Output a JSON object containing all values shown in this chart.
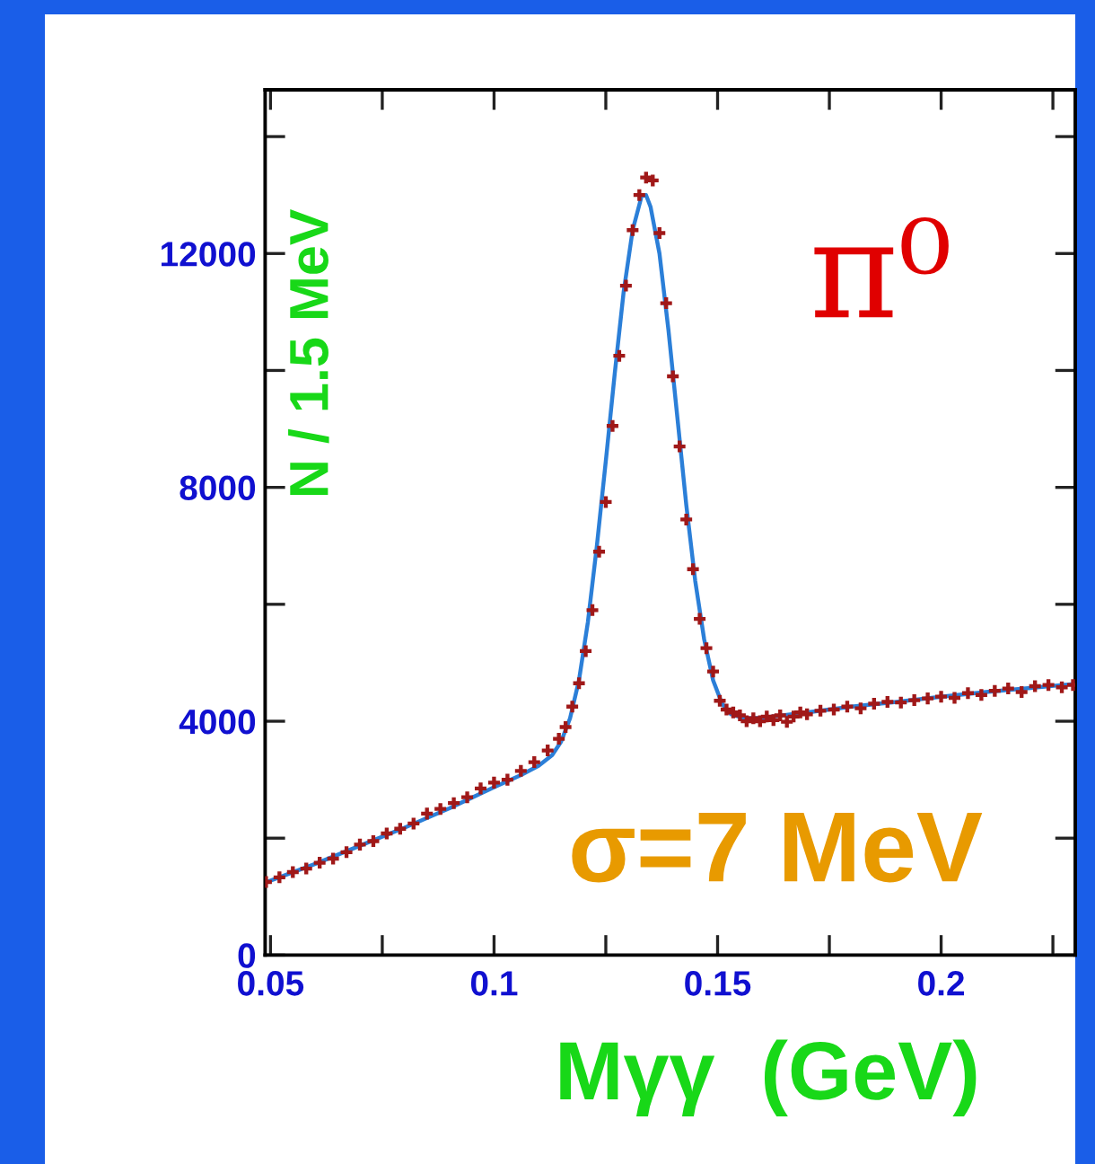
{
  "chart_data": {
    "type": "scatter",
    "xlabel": "Mγγ  (GeV)",
    "ylabel": "N / 1.5 MeV",
    "annotations": [
      "π⁰",
      "σ=7 MeV"
    ],
    "xlim": [
      0.0488,
      0.23
    ],
    "ylim": [
      0,
      14800
    ],
    "xticks": [
      0.05,
      {
        "value": 0.075,
        "label": null
      },
      0.1,
      {
        "value": 0.125,
        "label": null
      },
      0.15,
      {
        "value": 0.175,
        "label": null
      },
      0.2,
      {
        "value": 0.225,
        "label": null
      }
    ],
    "yticks": [
      0,
      {
        "value": 2000,
        "label": null
      },
      4000,
      {
        "value": 6000,
        "label": null
      },
      8000,
      {
        "value": 10000,
        "label": null
      },
      12000,
      {
        "value": 14000,
        "label": null
      }
    ],
    "grid": false,
    "legend": false,
    "series": [
      {
        "marker": "cross",
        "color": "#a01818",
        "x": [
          0.049,
          0.052,
          0.055,
          0.058,
          0.061,
          0.064,
          0.067,
          0.07,
          0.073,
          0.076,
          0.079,
          0.082,
          0.085,
          0.088,
          0.091,
          0.094,
          0.097,
          0.1,
          0.103,
          0.106,
          0.109,
          0.112,
          0.1145,
          0.116,
          0.1175,
          0.119,
          0.1205,
          0.122,
          0.1235,
          0.125,
          0.1265,
          0.128,
          0.1295,
          0.131,
          0.1325,
          0.134,
          0.1355,
          0.137,
          0.1385,
          0.14,
          0.1415,
          0.143,
          0.1445,
          0.146,
          0.1475,
          0.149,
          0.1505,
          0.152,
          0.1535,
          0.155,
          0.1565,
          0.158,
          0.1595,
          0.161,
          0.1625,
          0.164,
          0.1655,
          0.167,
          0.1685,
          0.17,
          0.173,
          0.176,
          0.179,
          0.182,
          0.185,
          0.188,
          0.191,
          0.194,
          0.197,
          0.2,
          0.203,
          0.206,
          0.209,
          0.212,
          0.215,
          0.218,
          0.221,
          0.224,
          0.227,
          0.2295
        ],
        "values": [
          1250,
          1330,
          1420,
          1480,
          1580,
          1650,
          1760,
          1890,
          1950,
          2080,
          2160,
          2250,
          2420,
          2500,
          2600,
          2700,
          2850,
          2950,
          3000,
          3150,
          3300,
          3500,
          3700,
          3900,
          4250,
          4650,
          5200,
          5900,
          6900,
          7750,
          9050,
          10250,
          11450,
          12400,
          13000,
          13300,
          13250,
          12350,
          11150,
          9900,
          8700,
          7450,
          6600,
          5750,
          5250,
          4850,
          4350,
          4200,
          4150,
          4100,
          4000,
          4050,
          4000,
          4080,
          4020,
          4100,
          3990,
          4080,
          4150,
          4120,
          4180,
          4200,
          4250,
          4220,
          4300,
          4330,
          4320,
          4360,
          4390,
          4420,
          4400,
          4480,
          4450,
          4520,
          4560,
          4500,
          4600,
          4620,
          4580,
          4620
        ]
      },
      {
        "type": "line",
        "color": "#2b7fd8",
        "line_style": "solid",
        "x": [
          0.0488,
          0.06,
          0.07,
          0.08,
          0.09,
          0.1,
          0.106,
          0.11,
          0.113,
          0.115,
          0.117,
          0.119,
          0.121,
          0.123,
          0.125,
          0.127,
          0.129,
          0.131,
          0.133,
          0.134,
          0.135,
          0.137,
          0.139,
          0.141,
          0.143,
          0.145,
          0.147,
          0.149,
          0.151,
          0.153,
          0.156,
          0.16,
          0.17,
          0.18,
          0.19,
          0.2,
          0.21,
          0.22,
          0.23
        ],
        "values": [
          1240,
          1560,
          1870,
          2180,
          2510,
          2870,
          3080,
          3240,
          3420,
          3650,
          4050,
          4700,
          5700,
          7000,
          8450,
          9950,
          11350,
          12400,
          12980,
          13000,
          12800,
          12000,
          10700,
          9200,
          7700,
          6400,
          5400,
          4700,
          4300,
          4120,
          4050,
          4060,
          4150,
          4250,
          4330,
          4420,
          4500,
          4570,
          4640
        ]
      }
    ]
  }
}
